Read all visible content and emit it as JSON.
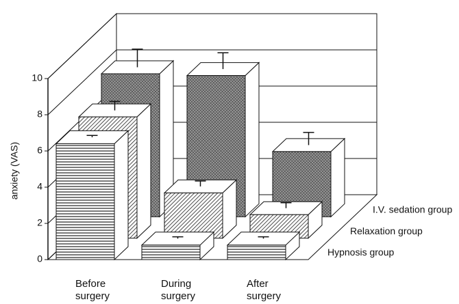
{
  "chart_data": {
    "type": "bar3d",
    "y_label": "anxiety (VAS)",
    "categories": [
      "Before surgery",
      "During surgery",
      "After surgery"
    ],
    "series": [
      {
        "name": "Hypnosis group",
        "pattern": "horizontal",
        "values": [
          6.4,
          0.8,
          0.8
        ],
        "errors": [
          0.1,
          0.1,
          0.1
        ]
      },
      {
        "name": "Relaxation group",
        "pattern": "diagonal",
        "values": [
          6.7,
          2.5,
          1.3
        ],
        "errors": [
          0.5,
          0.3,
          0.3
        ]
      },
      {
        "name": "I.V. sedation group",
        "pattern": "crosshatch",
        "values": [
          7.9,
          7.8,
          3.6
        ],
        "errors": [
          1.0,
          0.9,
          0.7
        ]
      }
    ],
    "ylim": [
      0,
      10
    ],
    "yticks": [
      0,
      2,
      4,
      6,
      8,
      10
    ],
    "grid": true
  }
}
